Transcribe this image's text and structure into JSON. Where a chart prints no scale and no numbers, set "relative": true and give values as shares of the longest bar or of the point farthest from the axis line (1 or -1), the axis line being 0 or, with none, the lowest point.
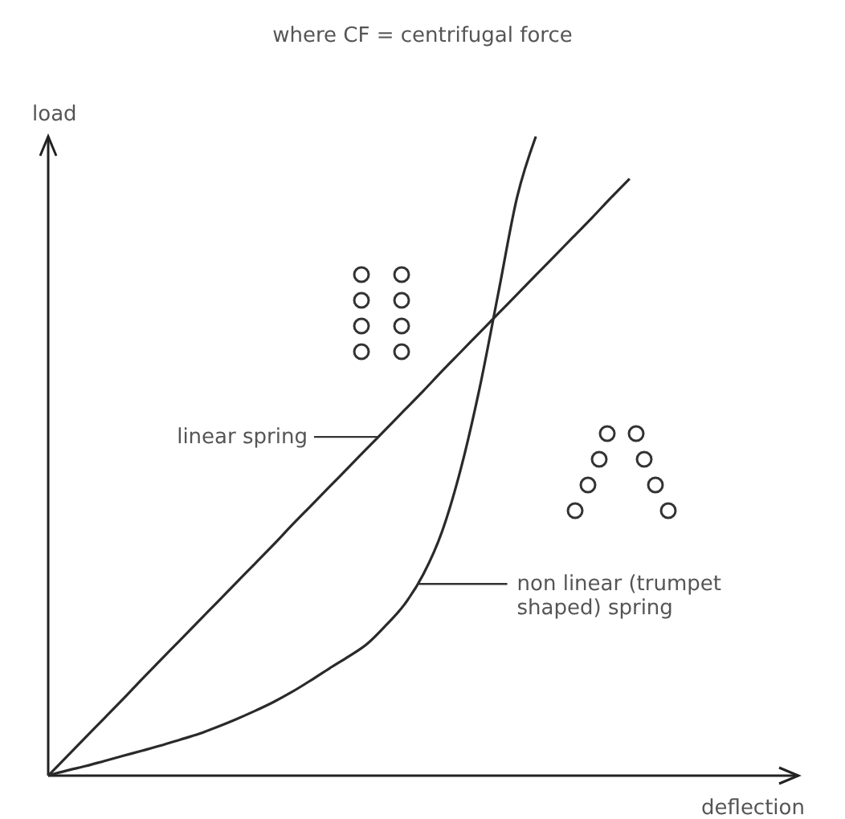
{
  "chart_data": {
    "type": "line",
    "title": "where CF = centrifugal force",
    "xlabel": "deflection",
    "ylabel": "load",
    "relative": true,
    "marker": "none",
    "categories": [
      null,
      null,
      null,
      null,
      null,
      null,
      null,
      null,
      null,
      null,
      null,
      null,
      null,
      null,
      null,
      null,
      null,
      null,
      null,
      null,
      null,
      null,
      null,
      null,
      null,
      null,
      null,
      null,
      null,
      null,
      null,
      null,
      null,
      null,
      null,
      null,
      null,
      null,
      null,
      null,
      null
    ],
    "series": [
      {
        "color": "#2a2a2a",
        "values": [
          0,
          0.03,
          0.06,
          0.09,
          0.12,
          0.151,
          0.181,
          0.211,
          0.241,
          0.271,
          0.301,
          0.331,
          0.361,
          0.392,
          0.422,
          0.452,
          0.482,
          0.512,
          0.542,
          0.572,
          0.602,
          0.633,
          0.663,
          0.693,
          0.723,
          0.753,
          0.783,
          0.813,
          0.843,
          0.873,
          0.904,
          0.934,
          null,
          null,
          null,
          null,
          null,
          null,
          null,
          null,
          null
        ]
      },
      {
        "color": "#2a2a2a",
        "values": [
          0,
          0.008,
          0.015,
          0.023,
          0.031,
          0.039,
          0.047,
          0.056,
          0.065,
          0.076,
          0.088,
          0.101,
          0.115,
          0.131,
          0.149,
          0.168,
          0.186,
          0.206,
          0.235,
          0.268,
          0.315,
          0.382,
          0.48,
          0.606,
          0.755,
          0.905,
          1,
          null,
          null,
          null,
          null,
          null,
          null,
          null,
          null,
          null,
          null,
          null,
          null,
          null,
          null
        ]
      }
    ],
    "annotations": [
      "linear spring",
      "non linear (trumpet\nshaped) spring"
    ]
  }
}
